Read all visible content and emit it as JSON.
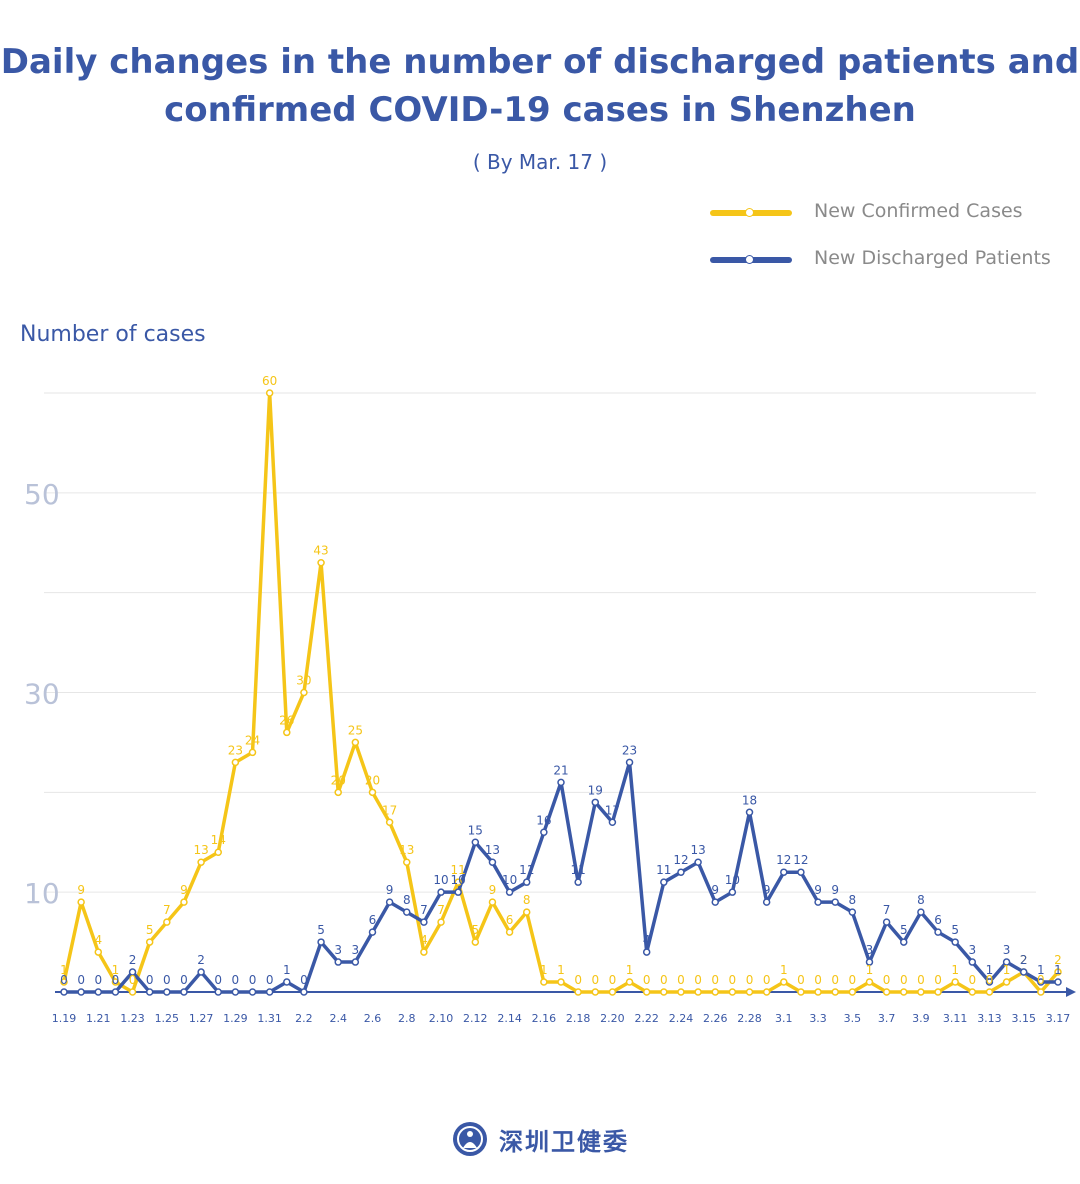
{
  "chart_data": {
    "type": "line",
    "title_line1": "Daily changes in the number of discharged patients and",
    "title_line2": "confirmed COVID-19 cases in Shenzhen",
    "subtitle": "( By Mar. 17 )",
    "ylabel": "Number of cases",
    "xlabel": "",
    "ylim": [
      0,
      60
    ],
    "yticks": [
      10,
      30,
      50
    ],
    "grid": true,
    "legend_position": "top-right",
    "x": [
      "1.19",
      "1.20",
      "1.21",
      "1.22",
      "1.23",
      "1.24",
      "1.25",
      "1.26",
      "1.27",
      "1.28",
      "1.29",
      "1.30",
      "1.31",
      "2.1",
      "2.2",
      "2.3",
      "2.4",
      "2.5",
      "2.6",
      "2.7",
      "2.8",
      "2.9",
      "2.10",
      "2.11",
      "2.12",
      "2.13",
      "2.14",
      "2.15",
      "2.16",
      "2.17",
      "2.18",
      "2.19",
      "2.20",
      "2.21",
      "2.22",
      "2.23",
      "2.24",
      "2.25",
      "2.26",
      "2.27",
      "2.28",
      "2.29",
      "3.1",
      "3.2",
      "3.3",
      "3.4",
      "3.5",
      "3.6",
      "3.7",
      "3.8",
      "3.9",
      "3.10",
      "3.11",
      "3.12",
      "3.13",
      "3.14",
      "3.15",
      "3.16",
      "3.17"
    ],
    "xtick_labels": [
      "1.19",
      "1.21",
      "1.23",
      "1.25",
      "1.27",
      "1.29",
      "1.31",
      "2.2",
      "2.4",
      "2.6",
      "2.8",
      "2.10",
      "2.12",
      "2.14",
      "2.16",
      "2.18",
      "2.20",
      "2.22",
      "2.24",
      "2.26",
      "2.28",
      "3.1",
      "3.3",
      "3.5",
      "3.7",
      "3.9",
      "3.11",
      "3.13",
      "3.15",
      "3.17"
    ],
    "series": [
      {
        "name": "New Confirmed Cases",
        "color": "#f5c518",
        "values": [
          1,
          9,
          4,
          1,
          0,
          5,
          7,
          9,
          13,
          14,
          23,
          24,
          60,
          26,
          30,
          43,
          20,
          25,
          20,
          17,
          13,
          4,
          7,
          11,
          5,
          9,
          6,
          8,
          1,
          1,
          0,
          0,
          0,
          1,
          0,
          0,
          0,
          0,
          0,
          0,
          0,
          0,
          1,
          0,
          0,
          0,
          0,
          1,
          0,
          0,
          0,
          0,
          1,
          0,
          0,
          1,
          2,
          0,
          2
        ]
      },
      {
        "name": "New Discharged Patients",
        "color": "#3a58a6",
        "values": [
          0,
          0,
          0,
          0,
          2,
          0,
          0,
          0,
          2,
          0,
          0,
          0,
          0,
          1,
          0,
          5,
          3,
          3,
          6,
          9,
          8,
          7,
          10,
          10,
          15,
          13,
          10,
          11,
          16,
          21,
          11,
          19,
          17,
          23,
          4,
          11,
          12,
          13,
          9,
          10,
          18,
          9,
          12,
          12,
          9,
          9,
          8,
          3,
          7,
          5,
          8,
          6,
          5,
          3,
          1,
          3,
          2,
          1,
          1
        ]
      }
    ]
  },
  "footer": {
    "logo_text": "深圳卫健委",
    "logo_icon": "health-commission-logo"
  }
}
